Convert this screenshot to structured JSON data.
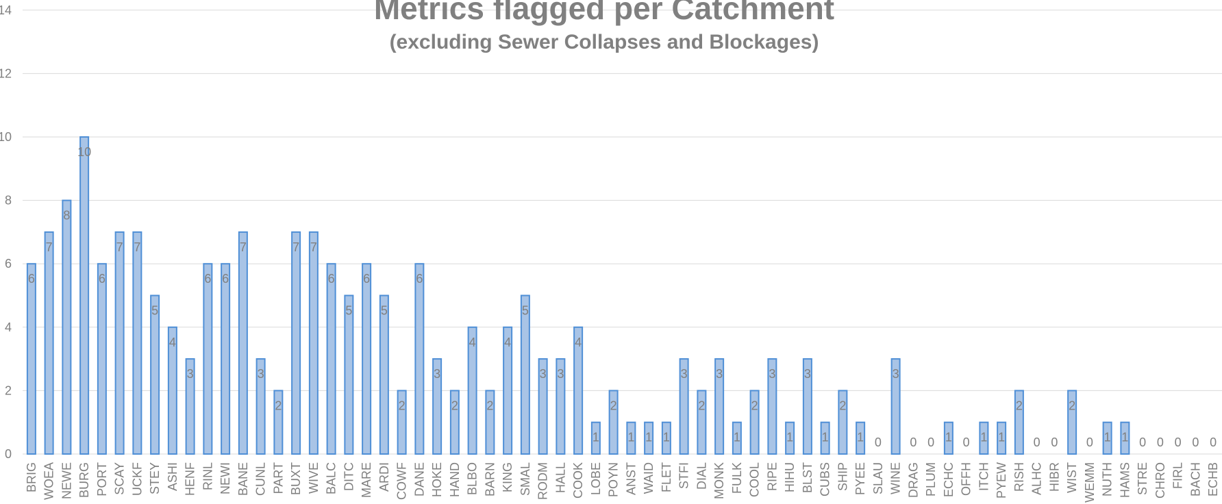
{
  "chart_data": {
    "type": "bar",
    "title": "Metrics flagged per Catchment",
    "subtitle": "(excluding Sewer Collapses and Blockages)",
    "xlabel": "",
    "ylabel": "",
    "ylim": [
      0,
      14
    ],
    "yticks": [
      0,
      2,
      4,
      6,
      8,
      10,
      12,
      14
    ],
    "grid": true,
    "bar_color": "#a9c4e6",
    "bar_edge_color": "#4f8fd6",
    "label_color": "#7f7f7f",
    "categories": [
      "BRIG",
      "WOEA",
      "NEWE",
      "BURG",
      "PORT",
      "SCAY",
      "UCKF",
      "STEY",
      "ASHI",
      "HENF",
      "RINL",
      "NEWI",
      "BANE",
      "CUNL",
      "PART",
      "BUXT",
      "WIVE",
      "BALC",
      "DITC",
      "MARE",
      "ARDI",
      "COWF",
      "DANE",
      "HOKE",
      "HAND",
      "BLBO",
      "BARN",
      "KING",
      "SMAL",
      "RODM",
      "HALL",
      "COOK",
      "LOBE",
      "POYN",
      "ANST",
      "WAID",
      "FLET",
      "STFI",
      "DIAL",
      "MONK",
      "FULK",
      "COOL",
      "RIPE",
      "HIHU",
      "BLST",
      "CUBS",
      "SHIP",
      "PYEE",
      "SLAU",
      "WINE",
      "DRAG",
      "PLUM",
      "ECHC",
      "OFFH",
      "ITCH",
      "PYEW",
      "RISH",
      "ALHC",
      "HIBR",
      "WIST",
      "WEMM",
      "NUTH",
      "HAMS",
      "STRE",
      "CHRO",
      "FIRL",
      "BACH",
      "ECHB"
    ],
    "values": [
      6,
      7,
      8,
      10,
      6,
      7,
      7,
      5,
      4,
      3,
      6,
      6,
      7,
      3,
      2,
      7,
      7,
      6,
      5,
      6,
      5,
      2,
      6,
      3,
      2,
      4,
      2,
      4,
      5,
      3,
      3,
      4,
      1,
      2,
      1,
      1,
      1,
      3,
      2,
      3,
      1,
      2,
      3,
      1,
      3,
      1,
      2,
      1,
      0,
      3,
      0,
      0,
      1,
      0,
      1,
      1,
      2,
      0,
      0,
      2,
      0,
      1,
      1,
      0,
      0,
      0,
      0,
      0
    ]
  }
}
